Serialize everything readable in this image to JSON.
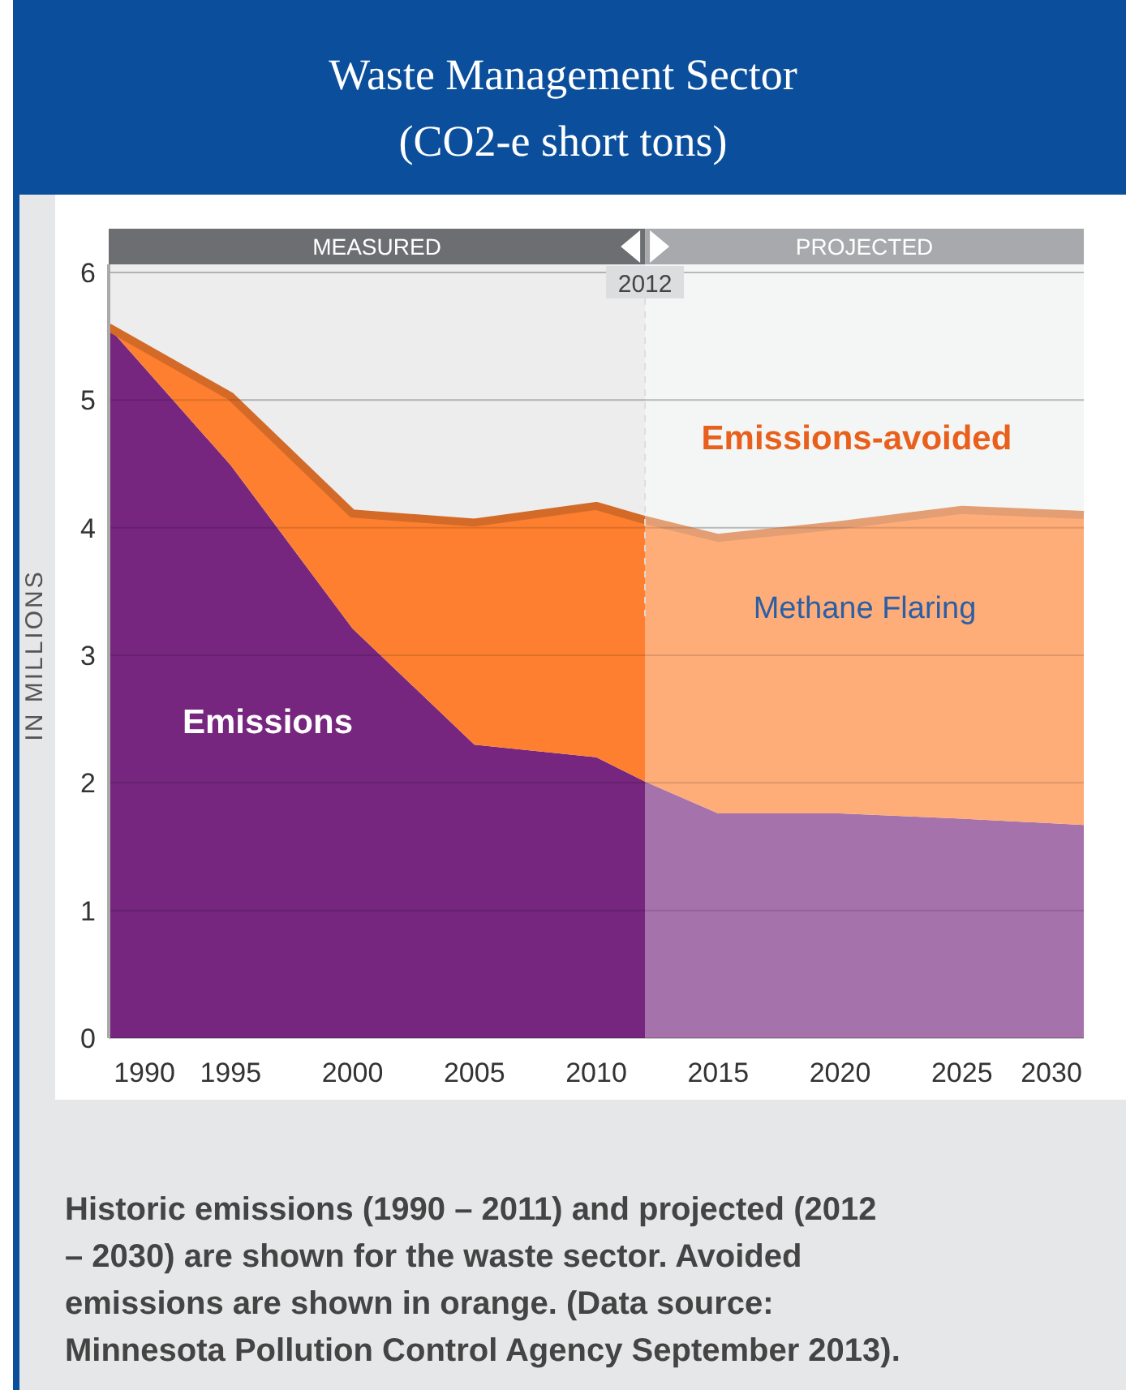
{
  "chart_data": {
    "type": "area",
    "title": "Waste Management Sector",
    "subtitle": "(CO2-e short tons)",
    "ylabel": "IN MILLIONS",
    "stacked": true,
    "series": [
      {
        "x": [
          1990,
          1995,
          2000,
          2005,
          2010,
          2012,
          2015,
          2020,
          2025,
          2030
        ],
        "values": [
          5.57,
          4.49,
          3.21,
          2.3,
          2.2,
          2.01,
          1.76,
          1.76,
          1.72,
          1.67
        ],
        "color": "#76267f"
      },
      {
        "x": [
          1990,
          1995,
          2000,
          2005,
          2010,
          2012,
          2015,
          2020,
          2025,
          2030
        ],
        "values": [
          0,
          0.54,
          0.9,
          1.74,
          1.97,
          2.05,
          2.16,
          2.26,
          2.42,
          2.43
        ],
        "color": "#fd7f2f"
      }
    ],
    "xlim": [
      1990,
      2030
    ],
    "xticks": [
      1990,
      1995,
      2000,
      2005,
      2010,
      2015,
      2020,
      2025,
      2030
    ],
    "ylim": [
      0,
      6
    ],
    "yticks": [
      0,
      1,
      2,
      3,
      4,
      5,
      6
    ],
    "grid": "y",
    "ref_lines": [
      {
        "axis": "x",
        "value": 2012,
        "label": "2012",
        "line_style": "dashed",
        "color": "#dddddd"
      }
    ],
    "bands": [
      {
        "axis": "x",
        "from": 1990,
        "to": 2012,
        "label": "MEASURED",
        "color": "#6d6e71"
      },
      {
        "axis": "x",
        "from": 2012,
        "to": 2030,
        "label": "PROJECTED",
        "color": "#a7a9ac"
      }
    ],
    "annotations": [
      "Emissions",
      "Emissions-avoided",
      "Methane Flaring",
      "Historic emissions (1990 – 2011) and projected (2012 – 2030) are shown for the waste sector. Avoided emissions are shown in orange. (Data source: Minnesota Pollution Control Agency September 2013)."
    ]
  }
}
